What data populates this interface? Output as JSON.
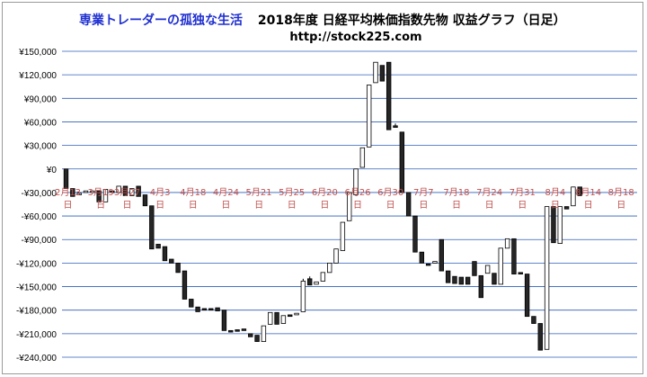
{
  "chart_data": {
    "type": "candlestick",
    "title_blog": "専業トレーダーの孤独な生活",
    "title_main": "2018年度 日経平均株価指数先物 収益グラフ（日足）",
    "subtitle": "http://stock225.com",
    "ylim": [
      -240000,
      150000
    ],
    "y_ticks": [
      {
        "value": 150000,
        "label": "¥150,000"
      },
      {
        "value": 120000,
        "label": "¥120,000"
      },
      {
        "value": 90000,
        "label": "¥90,000"
      },
      {
        "value": 60000,
        "label": "¥60,000"
      },
      {
        "value": 30000,
        "label": "¥30,000"
      },
      {
        "value": 0,
        "label": "¥0"
      },
      {
        "value": -30000,
        "label": "-¥30,000"
      },
      {
        "value": -60000,
        "label": "-¥60,000"
      },
      {
        "value": -90000,
        "label": "-¥90,000"
      },
      {
        "value": -120000,
        "label": "-¥120,000"
      },
      {
        "value": -150000,
        "label": "-¥150,000"
      },
      {
        "value": -180000,
        "label": "-¥180,000"
      },
      {
        "value": -210000,
        "label": "-¥210,000"
      },
      {
        "value": -240000,
        "label": "-¥240,000"
      }
    ],
    "x_tick_labels": [
      {
        "index": 0,
        "line1": "2月13",
        "line2": "日"
      },
      {
        "index": 5,
        "line1": "3月19",
        "line2": "日"
      },
      {
        "index": 9,
        "line1": "3月27",
        "line2": "日"
      },
      {
        "index": 14,
        "line1": "4月3",
        "line2": "日"
      },
      {
        "index": 19,
        "line1": "4月18",
        "line2": "日"
      },
      {
        "index": 24,
        "line1": "4月24",
        "line2": "日"
      },
      {
        "index": 29,
        "line1": "5月21",
        "line2": "日"
      },
      {
        "index": 34,
        "line1": "5月25",
        "line2": "日"
      },
      {
        "index": 39,
        "line1": "6月20",
        "line2": "日"
      },
      {
        "index": 44,
        "line1": "6月26",
        "line2": "日"
      },
      {
        "index": 49,
        "line1": "6月30",
        "line2": "日"
      },
      {
        "index": 54,
        "line1": "7月7",
        "line2": "日"
      },
      {
        "index": 59,
        "line1": "7月18",
        "line2": "日"
      },
      {
        "index": 64,
        "line1": "7月24",
        "line2": "日"
      },
      {
        "index": 69,
        "line1": "7月31",
        "line2": "日"
      },
      {
        "index": 74,
        "line1": "8月4",
        "line2": "日"
      },
      {
        "index": 79,
        "line1": "8月14",
        "line2": "日"
      },
      {
        "index": 84,
        "line1": "8月18",
        "line2": "日"
      }
    ],
    "candles": [
      {
        "open": 0,
        "close": -25000
      },
      {
        "open": -25000,
        "close": -35000
      },
      {
        "open": -33000,
        "close": -31000
      },
      {
        "open": -30000,
        "close": -28000
      },
      {
        "open": -30000,
        "close": -28000
      },
      {
        "open": -28000,
        "close": -42000
      },
      {
        "open": -42000,
        "close": -26000
      },
      {
        "open": -28000,
        "close": -30000
      },
      {
        "open": -30000,
        "close": -22000
      },
      {
        "open": -22000,
        "close": -34000
      },
      {
        "open": -34000,
        "close": -25000
      },
      {
        "open": -22000,
        "close": -35000
      },
      {
        "open": -33000,
        "close": -47000
      },
      {
        "open": -47000,
        "close": -102000
      },
      {
        "open": -96000,
        "close": -101000
      },
      {
        "open": -99000,
        "close": -117000
      },
      {
        "open": -115000,
        "close": -120000
      },
      {
        "open": -120000,
        "close": -132000
      },
      {
        "open": -130000,
        "close": -166000
      },
      {
        "open": -166000,
        "close": -176000
      },
      {
        "open": -176000,
        "close": -182000
      },
      {
        "open": -178000,
        "close": -180000
      },
      {
        "open": -178000,
        "close": -180000
      },
      {
        "open": -177000,
        "close": -181000
      },
      {
        "open": -180000,
        "close": -206000
      },
      {
        "open": -206000,
        "close": -208000
      },
      {
        "open": -205000,
        "close": -207000
      },
      {
        "open": -204000,
        "close": -206000
      },
      {
        "open": -210000,
        "close": -214000
      },
      {
        "open": -212000,
        "close": -220000
      },
      {
        "open": -220000,
        "close": -200000
      },
      {
        "open": -198000,
        "close": -183000
      },
      {
        "open": -183000,
        "close": -198000
      },
      {
        "open": -197000,
        "close": -187000
      },
      {
        "open": -186000,
        "close": -188000
      },
      {
        "open": -186000,
        "close": -184000
      },
      {
        "open": -182000,
        "close": -143000,
        "high": -140000
      },
      {
        "open": -140000,
        "close": -148000,
        "high": -137000
      },
      {
        "open": -147000,
        "close": -144000
      },
      {
        "open": -143000,
        "close": -132000
      },
      {
        "open": -132000,
        "close": -120000
      },
      {
        "open": -120000,
        "close": -102000
      },
      {
        "open": -104000,
        "close": -68000
      },
      {
        "open": -66000,
        "close": -30000
      },
      {
        "open": -33000,
        "close": 0
      },
      {
        "open": 2000,
        "close": 27000
      },
      {
        "open": 28000,
        "close": 107000
      },
      {
        "open": 110000,
        "close": 136000
      },
      {
        "open": 132000,
        "close": 112000
      },
      {
        "open": 136000,
        "close": 50000
      },
      {
        "open": 55000,
        "close": 53000,
        "high": 58000
      },
      {
        "open": 47000,
        "close": -30000
      },
      {
        "open": -30000,
        "close": -60000
      },
      {
        "open": -60000,
        "close": -106000
      },
      {
        "open": -106000,
        "close": -120000
      },
      {
        "open": -121000,
        "close": -123000
      },
      {
        "open": -120000,
        "close": -118000
      },
      {
        "open": -90000,
        "close": -130000
      },
      {
        "open": -130000,
        "close": -145000
      },
      {
        "open": -137000,
        "close": -146000
      },
      {
        "open": -138000,
        "close": -147000
      },
      {
        "open": -138000,
        "close": -147000
      },
      {
        "open": -118000,
        "close": -136000
      },
      {
        "open": -136000,
        "close": -164000
      },
      {
        "open": -133000,
        "close": -123000
      },
      {
        "open": -133000,
        "close": -147000
      },
      {
        "open": -147000,
        "close": -101000
      },
      {
        "open": -101000,
        "close": -89000
      },
      {
        "open": -89000,
        "close": -134000
      },
      {
        "open": -132000,
        "close": -134000
      },
      {
        "open": -134000,
        "close": -188000
      },
      {
        "open": -188000,
        "close": -197000
      },
      {
        "open": -197000,
        "close": -231000
      },
      {
        "open": -230000,
        "close": -48000
      },
      {
        "open": -48000,
        "close": -94000
      },
      {
        "open": -95000,
        "close": -48000
      },
      {
        "open": -48000,
        "close": -51000
      },
      {
        "open": -47000,
        "close": -23000
      },
      {
        "open": -23000,
        "close": -34000
      }
    ]
  },
  "colors": {
    "title_blog": "#1f2fd0",
    "grid": "#2e5fb8",
    "xtick": "#c0504d",
    "candle_down": "#262626",
    "candle_up": "#ffffff",
    "candle_stroke": "#000000"
  }
}
